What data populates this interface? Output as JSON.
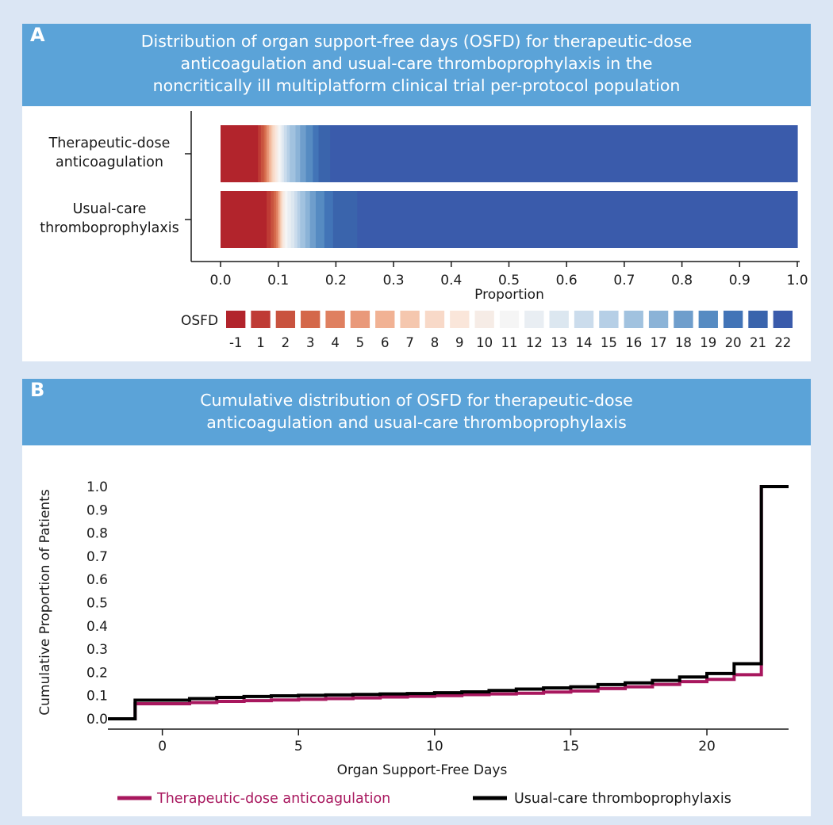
{
  "panel_a": {
    "letter": "A",
    "title": "Distribution of organ support-free days (OSFD) for therapeutic-dose\nanticoagulation and usual-care thromboprophylaxis in the\nnoncritically ill multiplatform clinical trial per-protocol population"
  },
  "panel_b": {
    "letter": "B",
    "title": "Cumulative distribution of OSFD for therapeutic-dose\nanticoagulation and usual-care thromboprophylaxis"
  },
  "colors": {
    "header": "#5ba3d8",
    "therapeutic": "#a8175e",
    "usual": "#000000",
    "osfd_scale": [
      "#b2242c",
      "#bf3b35",
      "#c9533f",
      "#d4684a",
      "#df8060",
      "#e9997a",
      "#f1b294",
      "#f5c7ae",
      "#f8d9c8",
      "#fae6da",
      "#f6ece6",
      "#f5f5f5",
      "#e9eef3",
      "#dce7f0",
      "#cbdcec",
      "#b6cfe6",
      "#a1c2df",
      "#8bb3d7",
      "#6f9ecc",
      "#568bc2",
      "#4274b7",
      "#3a64ac",
      "#3a5bab"
    ]
  },
  "chart_data": [
    {
      "type": "bar",
      "subtype": "stacked-horizontal-proportion",
      "categories": [
        "Therapeutic-dose\nanticoagulation",
        "Usual-care\nthromboprophylaxis"
      ],
      "xlabel": "Proportion",
      "xlim": [
        0,
        1
      ],
      "xticks": [
        "0.0",
        "0.1",
        "0.2",
        "0.3",
        "0.4",
        "0.5",
        "0.6",
        "0.7",
        "0.8",
        "0.9",
        "1.0"
      ],
      "legend_title": "OSFD",
      "osfd_levels": [
        "-1",
        "1",
        "2",
        "3",
        "4",
        "5",
        "6",
        "7",
        "8",
        "9",
        "10",
        "11",
        "12",
        "13",
        "14",
        "15",
        "16",
        "17",
        "18",
        "19",
        "20",
        "21",
        "22"
      ],
      "cumulative": [
        [
          0.065,
          0.07,
          0.075,
          0.078,
          0.081,
          0.084,
          0.087,
          0.09,
          0.094,
          0.097,
          0.1,
          0.104,
          0.107,
          0.11,
          0.115,
          0.12,
          0.13,
          0.138,
          0.148,
          0.16,
          0.17,
          0.19,
          1.0
        ],
        [
          0.08,
          0.087,
          0.092,
          0.096,
          0.099,
          0.101,
          0.103,
          0.105,
          0.107,
          0.109,
          0.112,
          0.116,
          0.122,
          0.128,
          0.133,
          0.138,
          0.147,
          0.155,
          0.165,
          0.18,
          0.195,
          0.237,
          1.0
        ]
      ]
    },
    {
      "type": "line",
      "subtype": "step",
      "xlabel": "Organ Support-Free Days",
      "ylabel": "Cumulative  Proportion of Patients",
      "xlim": [
        -2,
        23
      ],
      "ylim": [
        0,
        1
      ],
      "xticks": [
        0,
        5,
        10,
        15,
        20
      ],
      "yticks": [
        "0.0",
        "0.1",
        "0.2",
        "0.3",
        "0.4",
        "0.5",
        "0.6",
        "0.7",
        "0.8",
        "0.9",
        "1.0"
      ],
      "x": [
        -1,
        1,
        2,
        3,
        4,
        5,
        6,
        7,
        8,
        9,
        10,
        11,
        12,
        13,
        14,
        15,
        16,
        17,
        18,
        19,
        20,
        21,
        22
      ],
      "series": [
        {
          "name": "Therapeutic-dose anticoagulation",
          "values": [
            0.065,
            0.07,
            0.075,
            0.078,
            0.081,
            0.084,
            0.087,
            0.09,
            0.094,
            0.097,
            0.1,
            0.104,
            0.107,
            0.11,
            0.115,
            0.12,
            0.13,
            0.138,
            0.148,
            0.16,
            0.17,
            0.19,
            1.0
          ]
        },
        {
          "name": "Usual-care thromboprophylaxis",
          "values": [
            0.08,
            0.087,
            0.092,
            0.096,
            0.099,
            0.101,
            0.103,
            0.105,
            0.107,
            0.109,
            0.112,
            0.116,
            0.122,
            0.128,
            0.133,
            0.138,
            0.147,
            0.155,
            0.165,
            0.18,
            0.195,
            0.237,
            1.0
          ]
        }
      ],
      "legend": "bottom"
    }
  ]
}
